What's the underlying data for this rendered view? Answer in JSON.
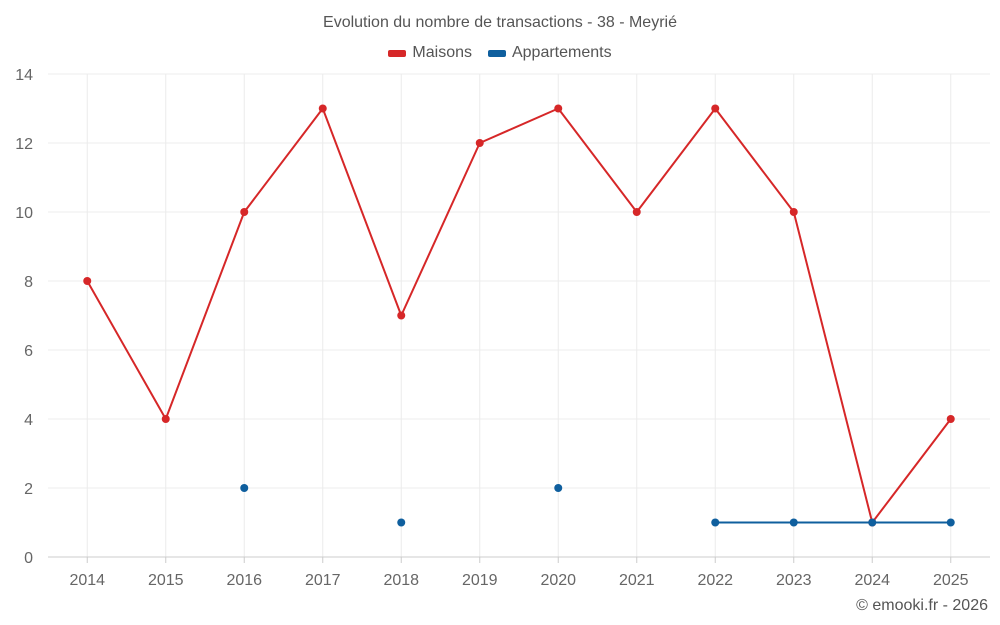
{
  "chart_data": {
    "type": "line",
    "title": "Evolution du nombre de transactions - 38 - Meyrié",
    "xlabel": "",
    "ylabel": "",
    "categories": [
      "2014",
      "2015",
      "2016",
      "2017",
      "2018",
      "2019",
      "2020",
      "2021",
      "2022",
      "2023",
      "2024",
      "2025"
    ],
    "ylim": [
      0,
      14
    ],
    "yticks": [
      0,
      2,
      4,
      6,
      8,
      10,
      12,
      14
    ],
    "grid": true,
    "legend_position": "top-center",
    "series": [
      {
        "name": "Maisons",
        "color": "#d62728",
        "values": [
          8,
          4,
          10,
          13,
          7,
          12,
          13,
          10,
          13,
          10,
          1,
          4
        ]
      },
      {
        "name": "Appartements",
        "color": "#0f5f9e",
        "values": [
          null,
          null,
          2,
          null,
          1,
          null,
          2,
          null,
          1,
          1,
          1,
          1
        ]
      }
    ]
  },
  "credit": "© emooki.fr - 2026"
}
